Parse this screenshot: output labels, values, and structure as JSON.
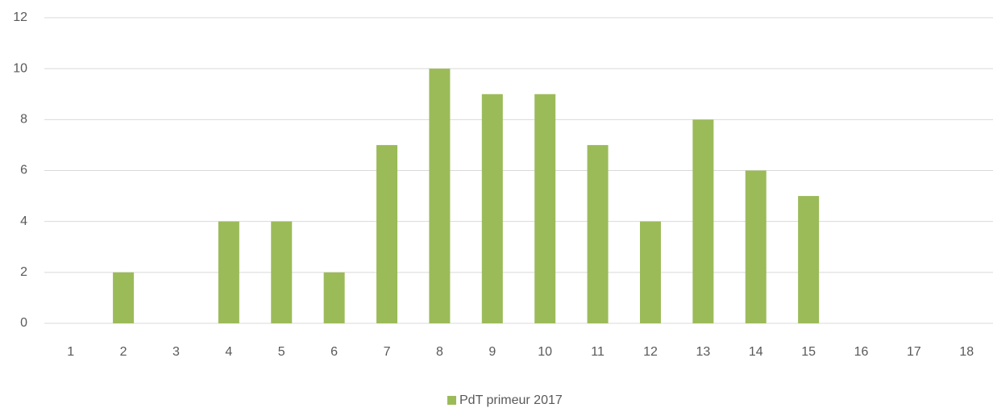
{
  "chart_data": {
    "type": "bar",
    "categories": [
      "1",
      "2",
      "3",
      "4",
      "5",
      "6",
      "7",
      "8",
      "9",
      "10",
      "11",
      "12",
      "13",
      "14",
      "15",
      "16",
      "17",
      "18"
    ],
    "series": [
      {
        "name": "PdT primeur 2017",
        "color": "#9bbb59",
        "values": [
          0,
          2,
          0,
          4,
          4,
          2,
          7,
          10,
          9,
          9,
          7,
          4,
          8,
          6,
          5,
          0,
          0,
          0
        ]
      }
    ],
    "ylim": [
      0,
      12
    ],
    "yticks": [
      0,
      2,
      4,
      6,
      8,
      10,
      12
    ],
    "grid": true,
    "legend": "bottom"
  }
}
